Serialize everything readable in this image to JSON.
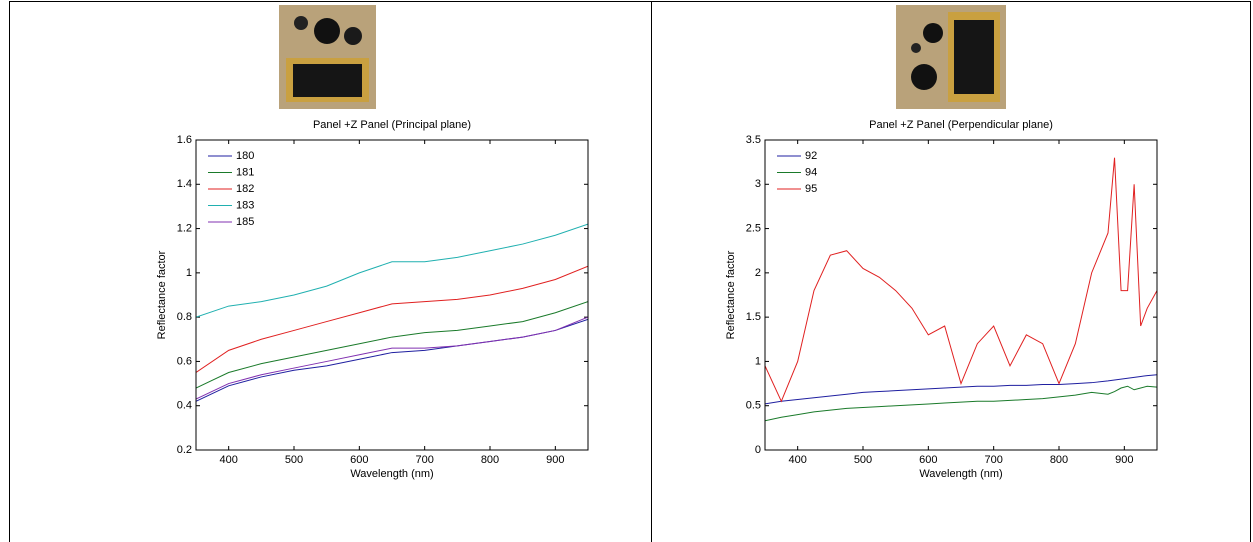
{
  "chart_data": [
    {
      "type": "line",
      "title": "Panel +Z Panel (Principal plane)",
      "xlabel": "Wavelength (nm)",
      "ylabel": "Reflectance factor",
      "x": [
        350,
        400,
        450,
        500,
        550,
        600,
        650,
        700,
        750,
        800,
        850,
        900,
        950
      ],
      "series": [
        {
          "name": "180",
          "color": "#1f1fa0",
          "values": [
            0.42,
            0.49,
            0.53,
            0.56,
            0.58,
            0.61,
            0.64,
            0.65,
            0.67,
            0.69,
            0.71,
            0.74,
            0.79
          ]
        },
        {
          "name": "181",
          "color": "#1a7a2a",
          "values": [
            0.48,
            0.55,
            0.59,
            0.62,
            0.65,
            0.68,
            0.71,
            0.73,
            0.74,
            0.76,
            0.78,
            0.82,
            0.87
          ]
        },
        {
          "name": "182",
          "color": "#e02020",
          "values": [
            0.55,
            0.65,
            0.7,
            0.74,
            0.78,
            0.82,
            0.86,
            0.87,
            0.88,
            0.9,
            0.93,
            0.97,
            1.03
          ]
        },
        {
          "name": "183",
          "color": "#20b0b0",
          "values": [
            0.8,
            0.85,
            0.87,
            0.9,
            0.94,
            1.0,
            1.05,
            1.05,
            1.07,
            1.1,
            1.13,
            1.17,
            1.22
          ]
        },
        {
          "name": "185",
          "color": "#8030b0",
          "values": [
            0.43,
            0.5,
            0.54,
            0.57,
            0.6,
            0.63,
            0.66,
            0.66,
            0.67,
            0.69,
            0.71,
            0.74,
            0.8
          ]
        }
      ],
      "xlim": [
        350,
        950
      ],
      "ylim": [
        0.2,
        1.6
      ],
      "xticks": [
        400,
        500,
        600,
        700,
        800,
        900
      ],
      "yticks": [
        0.2,
        0.4,
        0.6,
        0.8,
        1,
        1.2,
        1.4,
        1.6
      ]
    },
    {
      "type": "line",
      "title": "Panel +Z Panel (Perpendicular plane)",
      "xlabel": "Wavelength (nm)",
      "ylabel": "Reflectance factor",
      "x": [
        350,
        375,
        400,
        425,
        450,
        475,
        500,
        525,
        550,
        575,
        600,
        625,
        650,
        675,
        700,
        725,
        750,
        775,
        800,
        825,
        850,
        875,
        885,
        895,
        905,
        915,
        925,
        935,
        950
      ],
      "series": [
        {
          "name": "92",
          "color": "#1f1fa0",
          "values": [
            0.52,
            0.55,
            0.57,
            0.59,
            0.61,
            0.63,
            0.65,
            0.66,
            0.67,
            0.68,
            0.69,
            0.7,
            0.71,
            0.72,
            0.72,
            0.73,
            0.73,
            0.74,
            0.74,
            0.75,
            0.76,
            0.78,
            0.79,
            0.8,
            0.81,
            0.82,
            0.83,
            0.84,
            0.85
          ]
        },
        {
          "name": "94",
          "color": "#1a7a2a",
          "values": [
            0.33,
            0.37,
            0.4,
            0.43,
            0.45,
            0.47,
            0.48,
            0.49,
            0.5,
            0.51,
            0.52,
            0.53,
            0.54,
            0.55,
            0.55,
            0.56,
            0.57,
            0.58,
            0.6,
            0.62,
            0.65,
            0.63,
            0.66,
            0.7,
            0.72,
            0.68,
            0.7,
            0.72,
            0.71
          ]
        },
        {
          "name": "95",
          "color": "#e02020",
          "values": [
            0.95,
            0.55,
            1.0,
            1.8,
            2.2,
            2.25,
            2.05,
            1.95,
            1.8,
            1.6,
            1.3,
            1.4,
            0.75,
            1.2,
            1.4,
            0.95,
            1.3,
            1.2,
            0.75,
            1.2,
            2.0,
            2.45,
            3.3,
            1.8,
            1.8,
            3.0,
            1.4,
            1.6,
            1.8
          ]
        }
      ],
      "xlim": [
        350,
        950
      ],
      "ylim": [
        0,
        3.5
      ],
      "xticks": [
        400,
        500,
        600,
        700,
        800,
        900
      ],
      "yticks": [
        0,
        0.5,
        1,
        1.5,
        2,
        2.5,
        3,
        3.5
      ]
    }
  ]
}
